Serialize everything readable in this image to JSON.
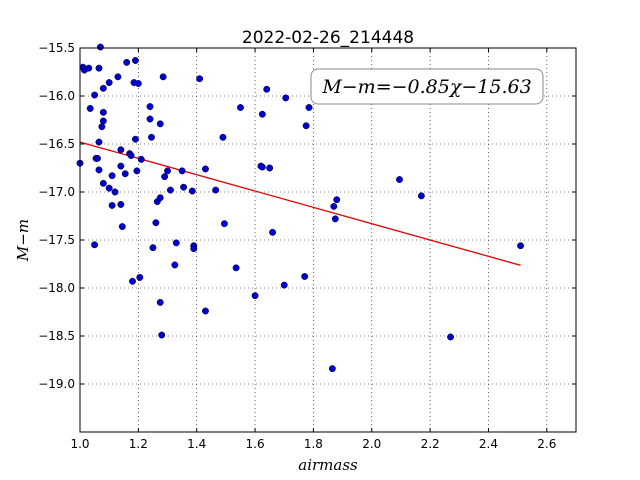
{
  "chart_data": {
    "type": "scatter",
    "title": "2022-02-26_214448",
    "xlabel": "airmass",
    "ylabel": "M−m",
    "xlim": [
      1.0,
      2.7
    ],
    "ylim": [
      -15.5,
      -19.5
    ],
    "y_inverted": true,
    "grid": true,
    "x_ticks": [
      "1.0",
      "1.2",
      "1.4",
      "1.6",
      "1.8",
      "2.0",
      "2.2",
      "2.4",
      "2.6"
    ],
    "y_ticks": [
      "−15.5",
      "−16.0",
      "−16.5",
      "−17.0",
      "−17.5",
      "−18.0",
      "−18.5",
      "−19.0"
    ],
    "annotation": "M−m=−0.85χ−15.63",
    "point_color": "#0000cc",
    "fit_color": "#dd0000",
    "fit_line": {
      "slope": -0.85,
      "intercept": -15.63,
      "x_range": [
        1.0,
        2.51
      ]
    },
    "points": [
      [
        1.0,
        -16.7
      ],
      [
        1.01,
        -15.7
      ],
      [
        1.015,
        -15.73
      ],
      [
        1.03,
        -15.71
      ],
      [
        1.035,
        -16.13
      ],
      [
        1.05,
        -15.99
      ],
      [
        1.055,
        -16.65
      ],
      [
        1.06,
        -16.65
      ],
      [
        1.065,
        -15.71
      ],
      [
        1.065,
        -16.48
      ],
      [
        1.065,
        -16.77
      ],
      [
        1.07,
        -15.49
      ],
      [
        1.075,
        -16.32
      ],
      [
        1.08,
        -16.17
      ],
      [
        1.08,
        -16.26
      ],
      [
        1.08,
        -15.92
      ],
      [
        1.08,
        -16.91
      ],
      [
        1.05,
        -17.55
      ],
      [
        1.1,
        -16.96
      ],
      [
        1.1,
        -15.86
      ],
      [
        1.11,
        -17.14
      ],
      [
        1.11,
        -16.83
      ],
      [
        1.12,
        -17.0
      ],
      [
        1.13,
        -15.8
      ],
      [
        1.14,
        -16.56
      ],
      [
        1.14,
        -16.73
      ],
      [
        1.14,
        -17.13
      ],
      [
        1.145,
        -17.36
      ],
      [
        1.155,
        -16.81
      ],
      [
        1.16,
        -15.65
      ],
      [
        1.17,
        -16.6
      ],
      [
        1.175,
        -16.62
      ],
      [
        1.18,
        -17.93
      ],
      [
        1.185,
        -15.86
      ],
      [
        1.19,
        -15.63
      ],
      [
        1.19,
        -16.45
      ],
      [
        1.195,
        -16.78
      ],
      [
        1.2,
        -15.87
      ],
      [
        1.205,
        -17.89
      ],
      [
        1.21,
        -16.66
      ],
      [
        1.24,
        -16.11
      ],
      [
        1.24,
        -16.24
      ],
      [
        1.245,
        -16.43
      ],
      [
        1.25,
        -17.58
      ],
      [
        1.26,
        -17.32
      ],
      [
        1.265,
        -17.1
      ],
      [
        1.275,
        -17.06
      ],
      [
        1.275,
        -16.29
      ],
      [
        1.275,
        -18.15
      ],
      [
        1.28,
        -18.49
      ],
      [
        1.285,
        -15.8
      ],
      [
        1.29,
        -16.84
      ],
      [
        1.3,
        -16.78
      ],
      [
        1.31,
        -16.98
      ],
      [
        1.325,
        -17.76
      ],
      [
        1.33,
        -17.53
      ],
      [
        1.35,
        -16.78
      ],
      [
        1.355,
        -16.95
      ],
      [
        1.385,
        -16.99
      ],
      [
        1.39,
        -17.56
      ],
      [
        1.39,
        -17.59
      ],
      [
        1.41,
        -15.82
      ],
      [
        1.43,
        -16.76
      ],
      [
        1.43,
        -18.24
      ],
      [
        1.465,
        -16.98
      ],
      [
        1.49,
        -16.43
      ],
      [
        1.495,
        -17.33
      ],
      [
        1.535,
        -17.79
      ],
      [
        1.55,
        -16.12
      ],
      [
        1.6,
        -18.08
      ],
      [
        1.62,
        -16.73
      ],
      [
        1.625,
        -16.19
      ],
      [
        1.625,
        -16.74
      ],
      [
        1.64,
        -15.93
      ],
      [
        1.65,
        -16.75
      ],
      [
        1.66,
        -17.42
      ],
      [
        1.7,
        -17.97
      ],
      [
        1.705,
        -16.02
      ],
      [
        1.77,
        -17.88
      ],
      [
        1.775,
        -16.31
      ],
      [
        1.785,
        -16.12
      ],
      [
        1.865,
        -18.84
      ],
      [
        1.87,
        -17.15
      ],
      [
        1.875,
        -17.28
      ],
      [
        1.88,
        -17.08
      ],
      [
        2.095,
        -16.87
      ],
      [
        2.17,
        -17.04
      ],
      [
        2.27,
        -18.51
      ],
      [
        2.51,
        -17.56
      ]
    ]
  }
}
